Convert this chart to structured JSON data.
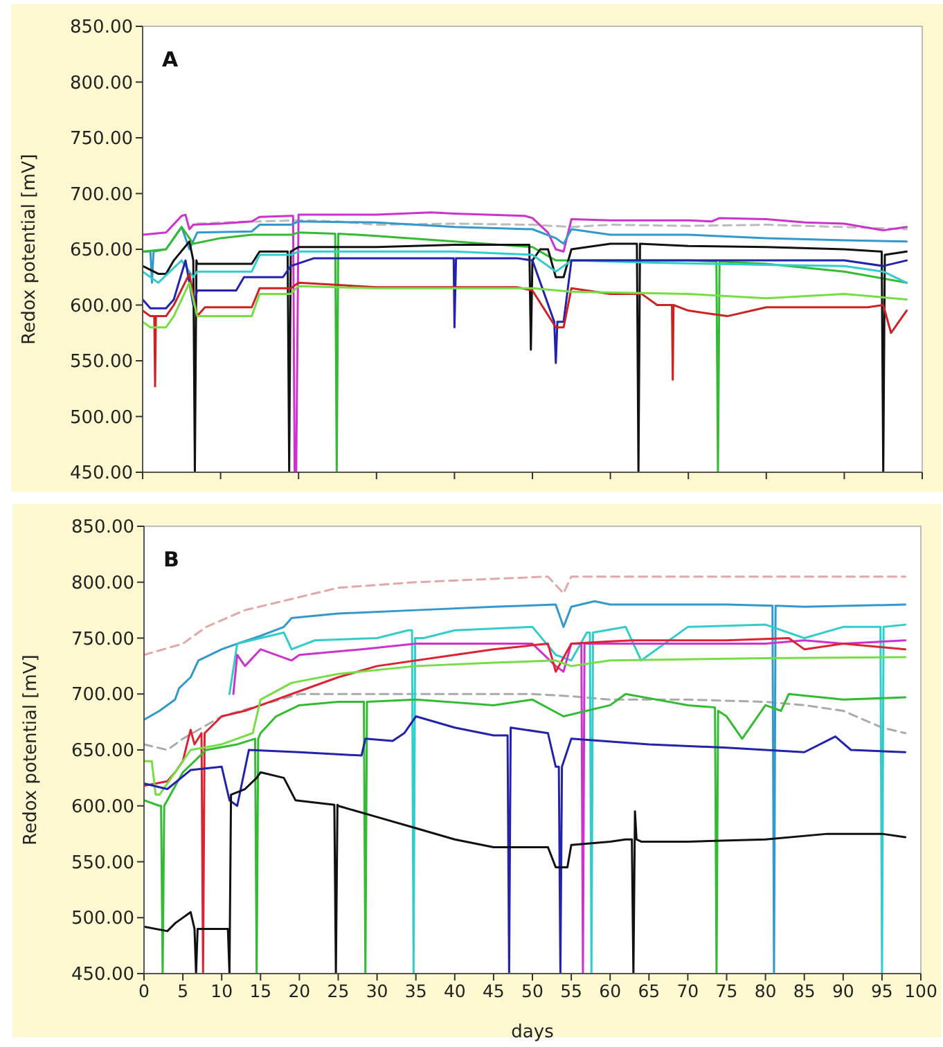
{
  "chart_data": [
    {
      "type": "line",
      "title": "A",
      "ylabel": "Redox potential [mV]",
      "xlim": [
        0,
        100
      ],
      "ylim": [
        450,
        850
      ],
      "tick_labels": "y",
      "marker": "none",
      "xticks": [
        {
          "value": 0,
          "label": null
        },
        {
          "value": 10,
          "label": null
        },
        {
          "value": 20,
          "label": null
        },
        {
          "value": 30,
          "label": null
        },
        {
          "value": 40,
          "label": null
        },
        {
          "value": 50,
          "label": null
        },
        {
          "value": 60,
          "label": null
        },
        {
          "value": 70,
          "label": null
        },
        {
          "value": 80,
          "label": null
        },
        {
          "value": 90,
          "label": null
        },
        {
          "value": 100,
          "label": null
        }
      ],
      "yticks": [
        {
          "value": 450,
          "label": "450.00"
        },
        {
          "value": 500,
          "label": "500.00"
        },
        {
          "value": 550,
          "label": "550.00"
        },
        {
          "value": 600,
          "label": "600.00"
        },
        {
          "value": 650,
          "label": "650.00"
        },
        {
          "value": 700,
          "label": "700.00"
        },
        {
          "value": 750,
          "label": "750.00"
        },
        {
          "value": 800,
          "label": "800.00"
        },
        {
          "value": 850,
          "label": "850.00"
        }
      ],
      "series": [
        {
          "color": "#bbbbbb",
          "line_style": "dashed",
          "x": [
            7,
            10,
            15,
            20,
            25,
            30,
            40,
            50,
            55,
            60,
            70,
            80,
            90,
            98
          ],
          "values": [
            673,
            674,
            675,
            676,
            675,
            672,
            673,
            672,
            670,
            672,
            671,
            672,
            670,
            668
          ]
        },
        {
          "color": "#cc33cc",
          "x": [
            0,
            3,
            5,
            5.5,
            6,
            6.5,
            10,
            14,
            15,
            19,
            19.3,
            19.5,
            19.7,
            20,
            30,
            37,
            40,
            49,
            50,
            52,
            53,
            54,
            55,
            60,
            70,
            73,
            74,
            80,
            85,
            90,
            95,
            98
          ],
          "values": [
            663,
            665,
            680,
            681,
            668,
            672,
            673,
            675,
            679,
            680,
            680,
            450,
            450,
            681,
            681,
            683,
            682,
            680,
            678,
            665,
            650,
            648,
            677,
            676,
            676,
            675,
            678,
            677,
            674,
            673,
            667,
            670
          ]
        },
        {
          "color": "#3399cc",
          "x": [
            0,
            1,
            1.2,
            1.4,
            3,
            5,
            6,
            7,
            14,
            15,
            19,
            20,
            30,
            40,
            50,
            53,
            54,
            55,
            60,
            70,
            80,
            90,
            98
          ],
          "values": [
            648,
            648,
            620,
            648,
            650,
            670,
            650,
            665,
            666,
            672,
            672,
            675,
            674,
            670,
            668,
            660,
            655,
            668,
            663,
            663,
            660,
            658,
            657
          ]
        },
        {
          "color": "#33bb33",
          "x": [
            0,
            3,
            5,
            6.5,
            10,
            14,
            19,
            20,
            24.7,
            24.9,
            25.1,
            30,
            40,
            50,
            53,
            55,
            70,
            73.6,
            73.8,
            74,
            80,
            90,
            98
          ],
          "values": [
            648,
            650,
            670,
            655,
            660,
            663,
            663,
            665,
            664,
            450,
            664,
            662,
            657,
            652,
            640,
            640,
            640,
            639,
            450,
            639,
            637,
            630,
            620
          ]
        },
        {
          "color": "#111111",
          "x": [
            0,
            2,
            3,
            4,
            6,
            6.5,
            6.7,
            6.9,
            7,
            14,
            15,
            18.6,
            18.8,
            19,
            20,
            30,
            40,
            49,
            49.6,
            49.8,
            50,
            51,
            52,
            53,
            54,
            55,
            60,
            63.4,
            63.6,
            63.8,
            70,
            80,
            90,
            94.8,
            95,
            95.2,
            98
          ],
          "values": [
            635,
            628,
            628,
            640,
            657,
            640,
            450,
            640,
            637,
            637,
            648,
            648,
            450,
            648,
            652,
            652,
            654,
            654,
            654,
            560,
            640,
            650,
            650,
            625,
            625,
            650,
            655,
            655,
            450,
            655,
            653,
            652,
            650,
            648,
            450,
            645,
            648
          ]
        },
        {
          "color": "#33cccc",
          "x": [
            0,
            2,
            5,
            6.5,
            7,
            14,
            15,
            19,
            20,
            40,
            50,
            53,
            55,
            65,
            80,
            90,
            95,
            98
          ],
          "values": [
            630,
            620,
            640,
            625,
            630,
            630,
            645,
            645,
            648,
            648,
            645,
            630,
            640,
            638,
            636,
            635,
            630,
            620
          ]
        },
        {
          "color": "#2222aa",
          "x": [
            0,
            1,
            3,
            4,
            5.5,
            6.5,
            7,
            12,
            13,
            18,
            19,
            22,
            39.9,
            40,
            40.2,
            48,
            50,
            52.8,
            53,
            53.2,
            54,
            55,
            60,
            90,
            95,
            98
          ],
          "values": [
            605,
            597,
            597,
            605,
            640,
            600,
            613,
            613,
            625,
            625,
            635,
            642,
            642,
            580,
            642,
            642,
            640,
            585,
            548,
            585,
            585,
            640,
            640,
            640,
            635,
            640
          ]
        },
        {
          "color": "#cc2222",
          "x": [
            0,
            1,
            1.5,
            1.6,
            1.7,
            3,
            4,
            6,
            7,
            8,
            14,
            15,
            19,
            20,
            30,
            48,
            50,
            53,
            54,
            55,
            60,
            64,
            66,
            67.9,
            68,
            68.1,
            70,
            75,
            80,
            93,
            95,
            96,
            98
          ],
          "values": [
            595,
            590,
            590,
            527,
            590,
            590,
            600,
            628,
            590,
            598,
            598,
            615,
            615,
            620,
            616,
            616,
            613,
            580,
            580,
            615,
            610,
            610,
            600,
            600,
            533,
            600,
            595,
            590,
            598,
            598,
            600,
            575,
            595
          ]
        },
        {
          "color": "#77dd44",
          "x": [
            0,
            1,
            3,
            4,
            6,
            7,
            14,
            15,
            19,
            20,
            30,
            50,
            55,
            70,
            80,
            90,
            98
          ],
          "values": [
            585,
            580,
            580,
            590,
            620,
            590,
            590,
            610,
            610,
            617,
            615,
            615,
            612,
            610,
            606,
            610,
            605
          ]
        }
      ]
    },
    {
      "type": "line",
      "title": "B",
      "xlabel": "days",
      "ylabel": "Redox potential [mV]",
      "xlim": [
        0,
        100
      ],
      "ylim": [
        450,
        850
      ],
      "marker": "none",
      "xticks": [
        0,
        5,
        10,
        15,
        20,
        25,
        30,
        35,
        40,
        45,
        50,
        55,
        60,
        65,
        70,
        75,
        80,
        85,
        90,
        95,
        100
      ],
      "yticks": [
        {
          "value": 450,
          "label": "450.00"
        },
        {
          "value": 500,
          "label": "500.00"
        },
        {
          "value": 550,
          "label": "550.00"
        },
        {
          "value": 600,
          "label": "600.00"
        },
        {
          "value": 650,
          "label": "650.00"
        },
        {
          "value": 700,
          "label": "700.00"
        },
        {
          "value": 750,
          "label": "750.00"
        },
        {
          "value": 800,
          "label": "800.00"
        },
        {
          "value": 850,
          "label": "850.00"
        }
      ],
      "series": [
        {
          "color": "#e0a8a8",
          "line_style": "dashed",
          "x": [
            0,
            5,
            8,
            13,
            19,
            25,
            35,
            45,
            52,
            54,
            55,
            98
          ],
          "values": [
            735,
            745,
            760,
            775,
            785,
            795,
            800,
            803,
            805,
            790,
            805,
            805
          ]
        },
        {
          "color": "#aaaaaa",
          "line_style": "dashed",
          "x": [
            0,
            3,
            5,
            10,
            20,
            30,
            40,
            50,
            55,
            60,
            70,
            80,
            85,
            90,
            95,
            98
          ],
          "values": [
            655,
            650,
            660,
            680,
            700,
            700,
            700,
            700,
            698,
            695,
            695,
            693,
            690,
            685,
            670,
            665
          ]
        },
        {
          "color": "#3399cc",
          "x": [
            0,
            2,
            4,
            4.5,
            6,
            7,
            10,
            12,
            15,
            18,
            19,
            25,
            35,
            45,
            53,
            54,
            55,
            58,
            60,
            75,
            80.9,
            81.1,
            81.3,
            85,
            98
          ],
          "values": [
            677,
            685,
            695,
            705,
            715,
            730,
            740,
            745,
            752,
            760,
            768,
            772,
            775,
            778,
            780,
            760,
            778,
            783,
            780,
            780,
            779,
            450,
            779,
            778,
            780
          ]
        },
        {
          "color": "#33cccc",
          "x": [
            11,
            12,
            15,
            18,
            19,
            22,
            30,
            34,
            34.5,
            34.7,
            34.9,
            36,
            40,
            50,
            53,
            55,
            57,
            57.4,
            57.6,
            57.8,
            62,
            64,
            70,
            80,
            85,
            90,
            94.8,
            95,
            95.2,
            98
          ],
          "values": [
            700,
            745,
            750,
            755,
            740,
            748,
            750,
            757,
            757,
            450,
            750,
            750,
            757,
            760,
            735,
            730,
            755,
            755,
            450,
            755,
            760,
            730,
            760,
            762,
            750,
            760,
            760,
            450,
            760,
            762
          ]
        },
        {
          "color": "#cc33cc",
          "x": [
            11.5,
            12,
            13,
            15,
            19,
            20,
            28,
            35,
            50,
            53,
            54,
            55,
            56.3,
            56.5,
            56.7,
            80,
            85,
            90,
            98
          ],
          "values": [
            700,
            735,
            725,
            740,
            730,
            735,
            740,
            745,
            745,
            725,
            720,
            745,
            745,
            450,
            745,
            745,
            748,
            745,
            748
          ]
        },
        {
          "color": "#dd2233",
          "x": [
            0,
            3,
            4,
            5,
            6,
            6.5,
            7.4,
            7.6,
            7.8,
            10,
            13,
            17,
            19,
            25,
            30,
            40,
            45,
            52,
            53,
            55,
            60,
            63,
            75,
            83,
            85,
            90,
            98
          ],
          "values": [
            618,
            622,
            630,
            640,
            668,
            655,
            665,
            450,
            665,
            680,
            685,
            695,
            700,
            715,
            725,
            735,
            740,
            745,
            720,
            745,
            747,
            748,
            748,
            750,
            740,
            745,
            740
          ]
        },
        {
          "color": "#77dd44",
          "x": [
            0,
            1,
            1.5,
            2,
            6,
            10,
            14,
            15,
            19,
            25,
            35,
            45,
            53,
            55,
            60,
            80,
            98
          ],
          "values": [
            640,
            640,
            610,
            610,
            650,
            655,
            665,
            695,
            710,
            718,
            725,
            728,
            730,
            725,
            730,
            732,
            733
          ]
        },
        {
          "color": "#33bb33",
          "x": [
            0,
            2,
            2.2,
            2.4,
            2.6,
            5,
            8,
            12,
            14.3,
            14.5,
            14.7,
            15,
            17,
            20,
            25,
            28.3,
            28.5,
            28.7,
            35,
            45,
            50,
            54,
            60,
            62,
            70,
            73.5,
            73.7,
            73.9,
            75,
            77,
            80,
            82,
            83,
            90,
            98
          ],
          "values": [
            605,
            600,
            600,
            450,
            600,
            630,
            650,
            655,
            660,
            450,
            660,
            665,
            680,
            690,
            693,
            693,
            450,
            693,
            695,
            690,
            695,
            680,
            690,
            700,
            690,
            688,
            450,
            685,
            680,
            660,
            690,
            685,
            700,
            695,
            697
          ]
        },
        {
          "color": "#2222aa",
          "x": [
            0,
            3,
            6,
            10,
            11,
            12,
            13.5,
            20,
            28,
            28.5,
            32,
            33.5,
            35,
            40,
            45,
            46.8,
            47,
            47.2,
            52,
            53,
            53.4,
            53.6,
            53.8,
            55,
            65,
            75,
            85,
            89,
            91,
            98
          ],
          "values": [
            620,
            615,
            632,
            635,
            605,
            600,
            650,
            648,
            645,
            660,
            658,
            665,
            680,
            670,
            663,
            663,
            450,
            670,
            665,
            635,
            635,
            450,
            635,
            660,
            655,
            652,
            648,
            662,
            650,
            648
          ]
        },
        {
          "color": "#111111",
          "x": [
            0,
            3,
            4,
            6,
            6.5,
            6.7,
            6.9,
            10.8,
            11,
            11.2,
            13,
            14.5,
            15,
            18,
            19.5,
            24.5,
            24.7,
            24.9,
            25,
            30,
            35,
            40,
            45,
            52,
            53,
            54.5,
            55,
            60,
            62,
            62.8,
            63,
            63.2,
            63.4,
            64,
            70,
            80,
            88,
            95,
            98
          ],
          "values": [
            492,
            488,
            495,
            505,
            490,
            450,
            490,
            490,
            450,
            610,
            615,
            625,
            630,
            625,
            605,
            601,
            450,
            601,
            600,
            590,
            580,
            570,
            563,
            563,
            545,
            545,
            565,
            568,
            570,
            570,
            450,
            595,
            570,
            568,
            568,
            570,
            575,
            575,
            572
          ]
        }
      ]
    }
  ]
}
